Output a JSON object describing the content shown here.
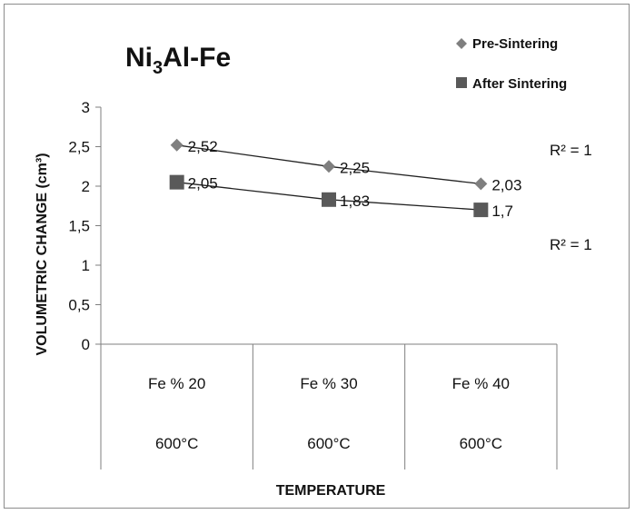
{
  "chart_data": {
    "type": "line",
    "title": "Ni3Al-Fe",
    "title_parts": {
      "main_a": "Ni",
      "sub": "3",
      "main_b": "Al-Fe"
    },
    "xlabel": "TEMPERATURE",
    "ylabel": "VOLUMETRIC CHANGE (cm³)",
    "ylim": [
      0,
      3
    ],
    "yticks": [
      "0",
      "0,5",
      "1",
      "1,5",
      "2",
      "2,5",
      "3"
    ],
    "ytick_values": [
      0,
      0.5,
      1,
      1.5,
      2,
      2.5,
      3
    ],
    "categories": [
      {
        "line1": "Fe % 20",
        "line2": "600°C"
      },
      {
        "line1": "Fe % 30",
        "line2": "600°C"
      },
      {
        "line1": "Fe % 40",
        "line2": "600°C"
      }
    ],
    "series": [
      {
        "name": "Pre-Sintering",
        "marker": "diamond",
        "color": "#7f7f7f",
        "values": [
          2.52,
          2.25,
          2.03
        ],
        "labels": [
          "2,52",
          "2,25",
          "2,03"
        ],
        "r2": "R² = 1"
      },
      {
        "name": "After Sintering",
        "marker": "square",
        "color": "#595959",
        "values": [
          2.05,
          1.83,
          1.7
        ],
        "labels": [
          "2,05",
          "1,83",
          "1,7"
        ],
        "r2": "R² = 1"
      }
    ],
    "legend_position": "top-right",
    "grid": false
  }
}
